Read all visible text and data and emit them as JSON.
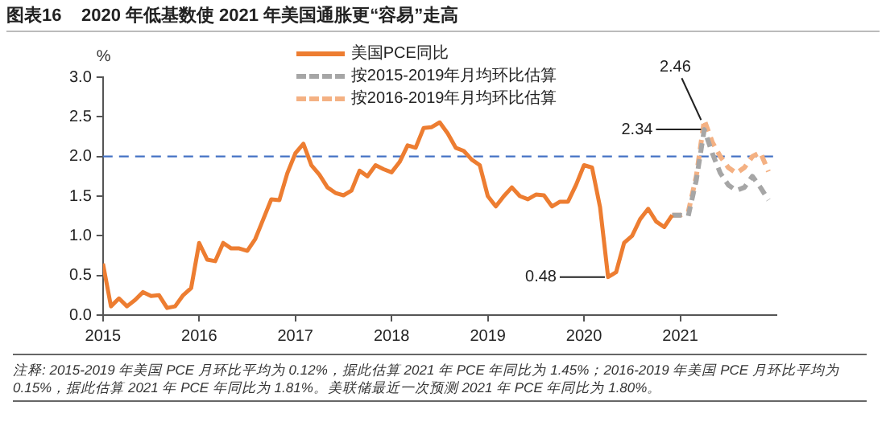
{
  "chart_data": {
    "type": "line",
    "title": "图表16    2020 年低基数使 2021 年美国通胀更“容易”走高",
    "ylabel": "%",
    "xlim": [
      "2015-01",
      "2022-01"
    ],
    "xticks": [
      "2015",
      "2016",
      "2017",
      "2018",
      "2019",
      "2020",
      "2021"
    ],
    "ylim": [
      0,
      3
    ],
    "yticks": [
      {
        "value": 0,
        "label": "0.0"
      },
      0.5,
      {
        "value": 1,
        "label": "1.0"
      },
      1.5,
      {
        "value": 2,
        "label": "2.0"
      },
      2.5,
      {
        "value": 3,
        "label": "3.0"
      }
    ],
    "grid": false,
    "legend": "top right",
    "marker": "none",
    "series": [
      {
        "name": "美国PCE同比",
        "color": "#ed7d31",
        "line_style": "solid",
        "x": [
          "2015-01",
          "2015-02",
          "2015-03",
          "2015-04",
          "2015-05",
          "2015-06",
          "2015-07",
          "2015-08",
          "2015-09",
          "2015-10",
          "2015-11",
          "2015-12",
          "2016-01",
          "2016-02",
          "2016-03",
          "2016-04",
          "2016-05",
          "2016-06",
          "2016-07",
          "2016-08",
          "2016-09",
          "2016-10",
          "2016-11",
          "2016-12",
          "2017-01",
          "2017-02",
          "2017-03",
          "2017-04",
          "2017-05",
          "2017-06",
          "2017-07",
          "2017-08",
          "2017-09",
          "2017-10",
          "2017-11",
          "2017-12",
          "2018-01",
          "2018-02",
          "2018-03",
          "2018-04",
          "2018-05",
          "2018-06",
          "2018-07",
          "2018-08",
          "2018-09",
          "2018-10",
          "2018-11",
          "2018-12",
          "2019-01",
          "2019-02",
          "2019-03",
          "2019-04",
          "2019-05",
          "2019-06",
          "2019-07",
          "2019-08",
          "2019-09",
          "2019-10",
          "2019-11",
          "2019-12",
          "2020-01",
          "2020-02",
          "2020-03",
          "2020-04",
          "2020-05",
          "2020-06",
          "2020-07",
          "2020-08",
          "2020-09",
          "2020-10",
          "2020-11",
          "2020-12"
        ],
        "values": [
          0.65,
          0.11,
          0.21,
          0.11,
          0.19,
          0.29,
          0.24,
          0.25,
          0.09,
          0.11,
          0.25,
          0.34,
          0.91,
          0.7,
          0.68,
          0.91,
          0.84,
          0.84,
          0.81,
          0.96,
          1.21,
          1.46,
          1.45,
          1.79,
          2.04,
          2.16,
          1.89,
          1.77,
          1.61,
          1.54,
          1.51,
          1.57,
          1.82,
          1.75,
          1.89,
          1.84,
          1.8,
          1.93,
          2.14,
          2.11,
          2.36,
          2.37,
          2.43,
          2.29,
          2.11,
          2.07,
          1.96,
          1.89,
          1.5,
          1.37,
          1.5,
          1.61,
          1.5,
          1.46,
          1.52,
          1.51,
          1.37,
          1.43,
          1.43,
          1.64,
          1.89,
          1.86,
          1.36,
          0.48,
          0.54,
          0.91,
          1.0,
          1.21,
          1.34,
          1.18,
          1.11,
          1.26
        ]
      },
      {
        "name": "按2015-2019年月均环比估算",
        "color": "#a6a6a6",
        "line_style": "dashed",
        "x": [
          "2020-12",
          "2021-01",
          "2021-02",
          "2021-03",
          "2021-04",
          "2021-05",
          "2021-06",
          "2021-07",
          "2021-08",
          "2021-09",
          "2021-10",
          "2021-11",
          "2021-12"
        ],
        "values": [
          1.26,
          1.26,
          1.25,
          1.7,
          2.34,
          2.04,
          1.79,
          1.64,
          1.57,
          1.61,
          1.75,
          1.61,
          1.45
        ]
      },
      {
        "name": "按2016-2019年月均环比估算",
        "color": "#f4b183",
        "line_style": "dashed",
        "x": [
          "2020-12",
          "2021-01",
          "2021-02",
          "2021-03",
          "2021-04",
          "2021-05",
          "2021-06",
          "2021-07",
          "2021-08",
          "2021-09",
          "2021-10",
          "2021-11",
          "2021-12"
        ],
        "values": [
          1.26,
          1.26,
          1.3,
          1.75,
          2.46,
          2.18,
          2.0,
          1.86,
          1.79,
          1.86,
          2.0,
          2.05,
          1.81
        ]
      }
    ],
    "ref_lines": [
      {
        "axis": "y",
        "value": 2,
        "color": "#4472c4",
        "line_style": "dashed"
      }
    ],
    "annotations": [
      {
        "text": "2.46",
        "x": "2021-04",
        "y": 2.46
      },
      {
        "text": "2.34",
        "x": "2021-04",
        "y": 2.34
      },
      {
        "text": "0.48",
        "x": "2020-04",
        "y": 0.48
      },
      "注释: 2015-2019 年美国 PCE 月环比平均为 0.12%，据此估算 2021 年 PCE 年同比为 1.45%；2016-2019 年美国 PCE 月环比平均为 0.15%，据此估算 2021 年 PCE 年同比为 1.81%。美联储最近一次预测 2021 年 PCE 年同比为 1.80%。"
    ]
  }
}
